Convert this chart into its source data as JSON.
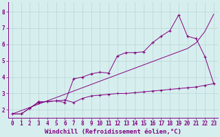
{
  "background_color": "#d7eeee",
  "grid_color": "#b0cece",
  "line_color": "#800080",
  "x_values": [
    0,
    1,
    2,
    3,
    4,
    5,
    6,
    7,
    8,
    9,
    10,
    11,
    12,
    13,
    14,
    15,
    16,
    17,
    18,
    19,
    20,
    21,
    22,
    23
  ],
  "line_zigzag_y": [
    1.75,
    1.75,
    2.1,
    2.45,
    2.5,
    2.55,
    2.45,
    3.9,
    4.0,
    4.2,
    4.3,
    4.25,
    5.3,
    5.5,
    5.5,
    5.55,
    6.1,
    6.5,
    6.85,
    7.8,
    6.5,
    6.35,
    5.25,
    3.6
  ],
  "line_straight_y": [
    1.75,
    1.95,
    2.15,
    2.35,
    2.55,
    2.75,
    2.95,
    3.15,
    3.35,
    3.55,
    3.75,
    3.95,
    4.15,
    4.35,
    4.55,
    4.75,
    4.95,
    5.15,
    5.35,
    5.55,
    5.75,
    6.1,
    6.8,
    7.85
  ],
  "line_flat_y": [
    1.75,
    1.75,
    2.1,
    2.5,
    2.5,
    2.55,
    2.6,
    2.45,
    2.7,
    2.85,
    2.9,
    2.95,
    3.0,
    3.0,
    3.05,
    3.1,
    3.15,
    3.2,
    3.25,
    3.3,
    3.35,
    3.4,
    3.5,
    3.6
  ],
  "xlabel": "Windchill (Refroidissement éolien,°C)",
  "xlabel_fontsize": 6.5,
  "tick_fontsize": 5.5,
  "ylim": [
    1.5,
    8.6
  ],
  "xlim": [
    -0.5,
    23.5
  ],
  "yticks": [
    2,
    3,
    4,
    5,
    6,
    7,
    8
  ],
  "xticks": [
    0,
    1,
    2,
    3,
    4,
    5,
    6,
    7,
    8,
    9,
    10,
    11,
    12,
    13,
    14,
    15,
    16,
    17,
    18,
    19,
    20,
    21,
    22,
    23
  ],
  "figsize": [
    3.2,
    2.0
  ],
  "dpi": 100
}
